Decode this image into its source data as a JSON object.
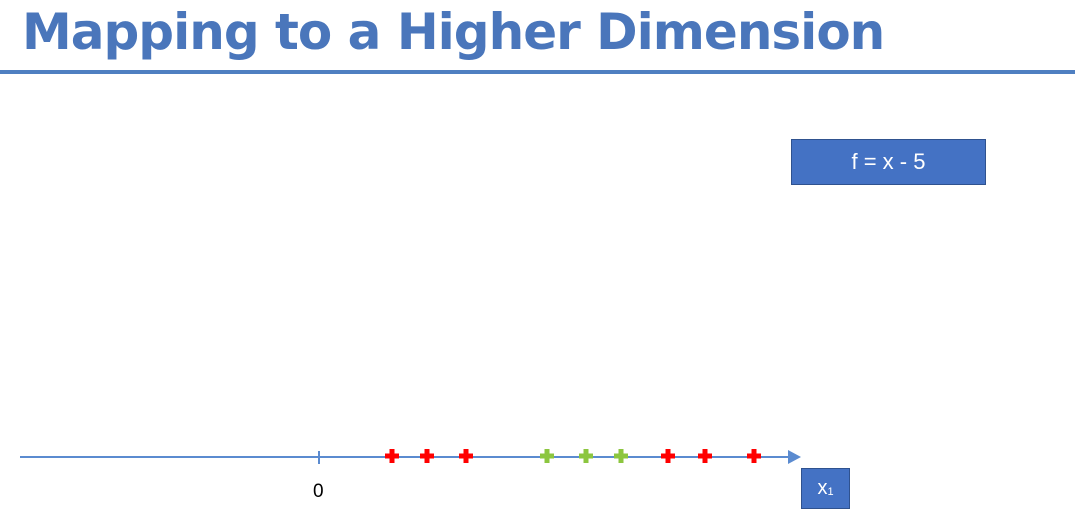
{
  "slide": {
    "title": "Mapping to a Higher Dimension"
  },
  "formula": {
    "label": "f = x - 5"
  },
  "axis": {
    "label_main": "x",
    "label_sub": "1",
    "zero_label": "0"
  },
  "colors": {
    "title": "#4a76bb",
    "box_fill": "#4472c4",
    "axis_line": "#5b8bd0",
    "red_point": "#ff0000",
    "green_point": "#8cc63f"
  },
  "points": [
    {
      "class": "red",
      "x": 392
    },
    {
      "class": "red",
      "x": 427
    },
    {
      "class": "red",
      "x": 466
    },
    {
      "class": "green",
      "x": 547
    },
    {
      "class": "green",
      "x": 586
    },
    {
      "class": "green",
      "x": 621
    },
    {
      "class": "red",
      "x": 668
    },
    {
      "class": "red",
      "x": 705
    },
    {
      "class": "red",
      "x": 754
    }
  ]
}
